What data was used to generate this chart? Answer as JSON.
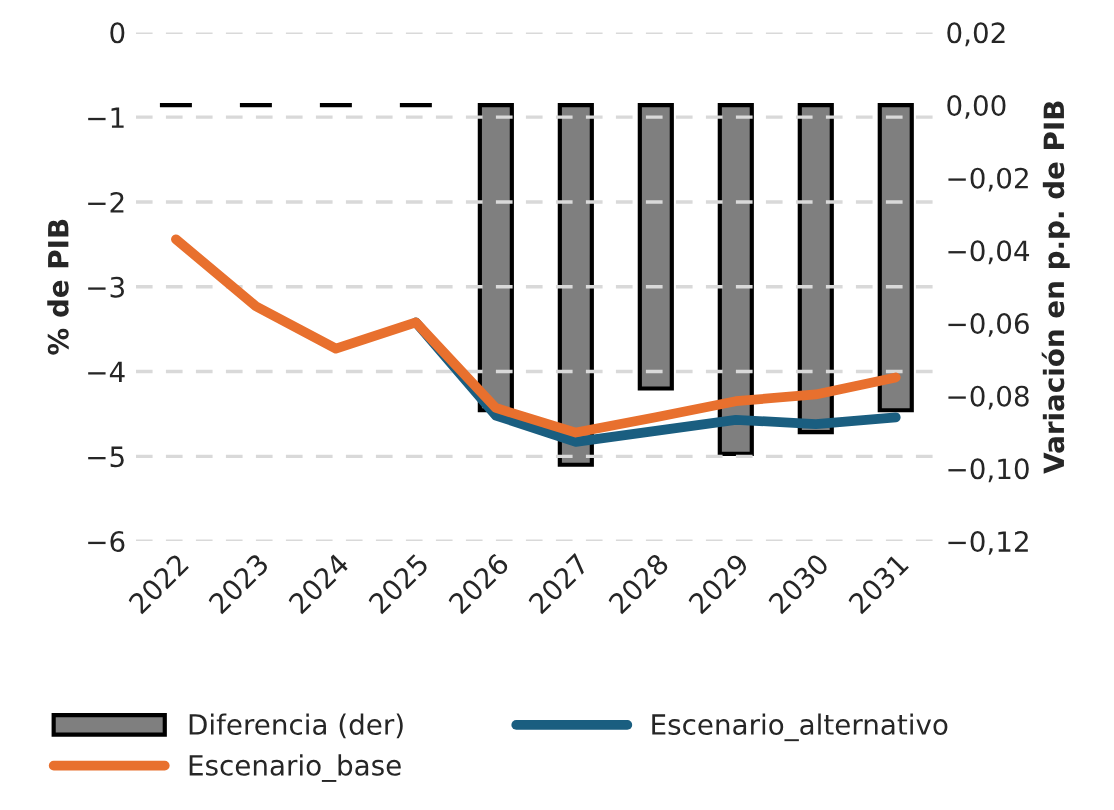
{
  "chart_data": {
    "type": "line",
    "ylabel": "% de PIB",
    "y2label": "Variación en p.p. de PIB",
    "categories": [
      "2022",
      "2023",
      "2024",
      "2025",
      "2026",
      "2027",
      "2028",
      "2029",
      "2030",
      "2031"
    ],
    "series": [
      {
        "name": "Diferencia (der)",
        "type": "bar",
        "axis": "y2",
        "color": "#7f7f7f",
        "colors": [
          "#000000",
          "#000000",
          "#000000",
          "#000000",
          "#7f7f7f",
          "#7f7f7f",
          "#7f7f7f",
          "#7f7f7f",
          "#7f7f7f",
          "#7f7f7f"
        ],
        "values": [
          0.0,
          0.0,
          0.0,
          0.0,
          -0.084,
          -0.099,
          -0.078,
          -0.096,
          -0.09,
          -0.084
        ]
      },
      {
        "name": "Escenario_alternativo",
        "color": "#1a5e80",
        "values": [
          null,
          null,
          null,
          -3.42,
          -4.52,
          -4.83,
          -4.7,
          -4.57,
          -4.62,
          -4.54
        ]
      },
      {
        "name": "Escenario_base",
        "color": "#e8702e",
        "values": [
          -2.44,
          -3.23,
          -3.73,
          -3.42,
          -4.43,
          -4.72,
          -4.54,
          -4.35,
          -4.27,
          -4.07
        ]
      }
    ],
    "ylim": [
      -6,
      0
    ],
    "yticks": [
      {
        "value": 0,
        "label": "0"
      },
      {
        "value": -1,
        "label": "−1"
      },
      {
        "value": -2,
        "label": "−2"
      },
      {
        "value": -3,
        "label": "−3"
      },
      {
        "value": -4,
        "label": "−4"
      },
      {
        "value": -5,
        "label": "−5"
      },
      {
        "value": -6,
        "label": "−6"
      }
    ],
    "y2lim": [
      -0.12,
      0.02
    ],
    "y2ticks": [
      {
        "value": 0.02,
        "label": "0,02"
      },
      {
        "value": 0.0,
        "label": "0,00"
      },
      {
        "value": -0.02,
        "label": "−0,02"
      },
      {
        "value": -0.04,
        "label": "−0,04"
      },
      {
        "value": -0.06,
        "label": "−0,06"
      },
      {
        "value": -0.08,
        "label": "−0,08"
      },
      {
        "value": -0.1,
        "label": "−0,10"
      },
      {
        "value": -0.12,
        "label": "−0,12"
      }
    ],
    "grid": "y",
    "legend": "bottom",
    "line_style": "solid",
    "marker": "none"
  }
}
